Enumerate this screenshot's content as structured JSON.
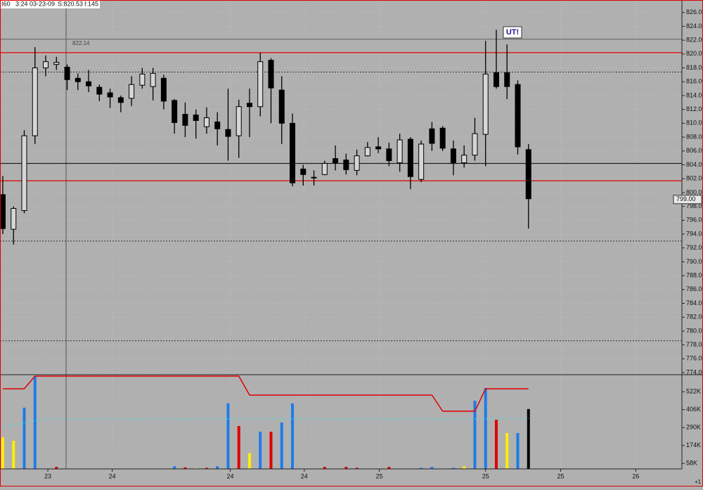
{
  "header": {
    "symbol": "I60",
    "time": "3:24",
    "date": "03-23-09",
    "last": "S:820.53",
    "interval": "I:145"
  },
  "chart_data": [
    {
      "type": "candlestick",
      "open": [
        799.7,
        794.7,
        797.4,
        808.2,
        818,
        818.5,
        818.1,
        816.5,
        816,
        815.2,
        814.4,
        813.7,
        813.6,
        815.5,
        815.3,
        816.5,
        813.3,
        811.3,
        811.2,
        809.5,
        810.2,
        809.1,
        808.2,
        812.9,
        812.4,
        819.1,
        814.8,
        810,
        803.4,
        802.2,
        802.6,
        804.9,
        804.7,
        803.2,
        805.3,
        806.6,
        806.3,
        804.3,
        807.7,
        801.9,
        809.2,
        809.3,
        806.3,
        804.3,
        805.4,
        808.4,
        817.3,
        817.3,
        815.6,
        806.2
      ],
      "high": [
        802.4,
        798,
        809,
        821,
        819.8,
        819.6,
        818.5,
        817.2,
        817.7,
        815.6,
        815,
        814,
        816.8,
        818,
        818,
        817,
        813.5,
        813,
        812,
        812.3,
        811.6,
        815,
        813.4,
        815,
        820.2,
        819.4,
        816.8,
        811.4,
        804,
        803.2,
        804.6,
        806.8,
        805.6,
        806.2,
        807.3,
        808,
        807.2,
        808.5,
        808,
        807.5,
        810.2,
        809.6,
        807.5,
        806.8,
        810.8,
        821.9,
        823.5,
        821.4,
        816.2,
        807
      ],
      "low": [
        794,
        792.5,
        797,
        807,
        816.8,
        817.7,
        814.8,
        814.8,
        814.5,
        813.2,
        812.2,
        811.6,
        812.5,
        815,
        813.3,
        812,
        808.5,
        808,
        807.8,
        808.5,
        806.8,
        804.6,
        805,
        808,
        811,
        810,
        807,
        800.9,
        801,
        801,
        802.5,
        803.2,
        802.6,
        802.5,
        805.2,
        805.7,
        803.8,
        803,
        800.5,
        801.5,
        806,
        806,
        802.5,
        803.6,
        804.6,
        803.8,
        815,
        813.5,
        805.5,
        794.8
      ],
      "close": [
        794.8,
        797.7,
        808.2,
        818,
        818.9,
        818.8,
        816.3,
        816,
        815.4,
        814.2,
        813.8,
        813,
        815.6,
        817.1,
        817.2,
        813.2,
        810.1,
        809.7,
        810.4,
        810.8,
        809.2,
        808.1,
        812.4,
        812.4,
        818.9,
        815.1,
        810,
        801.4,
        802.6,
        802.1,
        804.2,
        804.3,
        803.3,
        805.3,
        806.5,
        806.3,
        804.6,
        807.6,
        802.3,
        807,
        807.1,
        806.4,
        804.3,
        805.4,
        808.5,
        817.1,
        815.3,
        815.3,
        806.6,
        799.1
      ],
      "up_color": "#d6d6d6",
      "down_color": "#000000",
      "xlim": [
        -0.26,
        63.3
      ],
      "ylim": [
        773.8,
        827.8
      ],
      "xticks": [
        {
          "value": 4.2,
          "label": "23"
        },
        {
          "value": 10.2,
          "label": "24"
        },
        {
          "value": 21.2,
          "label": "24"
        },
        {
          "value": 28.1,
          "label": "24"
        },
        {
          "value": 35.1,
          "label": "25"
        },
        {
          "value": 45,
          "label": "25"
        },
        {
          "value": 52,
          "label": "25"
        },
        {
          "value": 59,
          "label": "26"
        }
      ],
      "yticks": [
        {
          "value": 826,
          "label": "826.00"
        },
        {
          "value": 824,
          "label": "824.00"
        },
        {
          "value": 822,
          "label": "822.00"
        },
        {
          "value": 820,
          "label": "820.00"
        },
        {
          "value": 818,
          "label": "818.00"
        },
        {
          "value": 816,
          "label": "816.00"
        },
        {
          "value": 814,
          "label": "814.00"
        },
        {
          "value": 812,
          "label": "812.00"
        },
        {
          "value": 810,
          "label": "810.00"
        },
        {
          "value": 808,
          "label": "808.00"
        },
        {
          "value": 806,
          "label": "806.00"
        },
        {
          "value": 804,
          "label": "804.00"
        },
        {
          "value": 802,
          "label": "802.00"
        },
        {
          "value": 800,
          "label": "800.00"
        },
        {
          "value": 798,
          "label": "798.00"
        },
        {
          "value": 796,
          "label": "796.00"
        },
        {
          "value": 794,
          "label": "794.00"
        },
        {
          "value": 792,
          "label": "792.00"
        },
        {
          "value": 790,
          "label": "790.00"
        },
        {
          "value": 788,
          "label": "788.00"
        },
        {
          "value": 786,
          "label": "786.00"
        },
        {
          "value": 784,
          "label": "784.00"
        },
        {
          "value": 782,
          "label": "782.00"
        },
        {
          "value": 780,
          "label": "780.00"
        },
        {
          "value": 778,
          "label": "778.00"
        },
        {
          "value": 776,
          "label": "776.00"
        },
        {
          "value": 774,
          "label": "774.00"
        }
      ],
      "grid": true,
      "levels": [
        {
          "value": 822.14,
          "label": "822.14",
          "color": "#6e6e6e",
          "dash": false
        },
        {
          "value": 820.2,
          "color": "#e00000",
          "dash": false
        },
        {
          "value": 817.4,
          "color": "#303030",
          "dash": true
        },
        {
          "value": 804.2,
          "color": "#202020",
          "dash": false
        },
        {
          "value": 801.7,
          "color": "#e00000",
          "dash": false
        },
        {
          "value": 793.0,
          "color": "#303030",
          "dash": true
        },
        {
          "value": 778.6,
          "color": "#303030",
          "dash": true
        }
      ],
      "last_price": {
        "value": 799,
        "label": "799.00"
      },
      "annotation": "UT!"
    },
    {
      "type": "bar",
      "values": [
        227000,
        205000,
        419000,
        623000,
        23000,
        36000,
        8000,
        9000,
        10000,
        8000,
        9000,
        10000,
        12000,
        10000,
        11000,
        25000,
        40000,
        33000,
        27000,
        30000,
        40000,
        447000,
        300000,
        125000,
        263000,
        263000,
        323000,
        446000,
        25000,
        20000,
        36000,
        15000,
        36000,
        30000,
        15000,
        13000,
        36000,
        15000,
        15000,
        30000,
        36000,
        23000,
        30000,
        40000,
        464000,
        546000,
        341000,
        255000,
        255000,
        410000
      ],
      "colors": [
        "#ffee00",
        "#ffee00",
        "#1e7ce8",
        "#1e7ce8",
        "#ffee00",
        "#e00000",
        "#1e7ce8",
        "#e00000",
        "#ffee00",
        "#1e7ce8",
        "#ffee00",
        "#1e7ce8",
        "#1e7ce8",
        "#ffee00",
        "#e00000",
        "#1e7ce8",
        "#1e7ce8",
        "#e00000",
        "#ffee00",
        "#e00000",
        "#1e7ce8",
        "#1e7ce8",
        "#e00000",
        "#ffee00",
        "#1e7ce8",
        "#e00000",
        "#1e7ce8",
        "#1e7ce8",
        "#ffee00",
        "#ffee00",
        "#e00000",
        "#ffee00",
        "#e00000",
        "#e00000",
        "#ffee00",
        "#ffee00",
        "#e00000",
        "#ffee00",
        "#1e7ce8",
        "#1e7ce8",
        "#1e7ce8",
        "#e00000",
        "#1e7ce8",
        "#ffee00",
        "#1e7ce8",
        "#1e7ce8",
        "#e00000",
        "#ffee00",
        "#1e7ce8",
        "#000000"
      ],
      "lines": [
        {
          "color": "#e00000",
          "dash": false,
          "values": [
            541000,
            541000,
            541000,
            623000,
            623000,
            623000,
            623000,
            623000,
            623000,
            623000,
            623000,
            623000,
            623000,
            623000,
            623000,
            623000,
            623000,
            623000,
            623000,
            623000,
            623000,
            623000,
            623000,
            500000,
            500000,
            500000,
            500000,
            500000,
            500000,
            500000,
            500000,
            500000,
            500000,
            500000,
            500000,
            500000,
            500000,
            500000,
            500000,
            500000,
            500000,
            396000,
            396000,
            396000,
            396000,
            541000,
            541000,
            541000,
            541000,
            541000
          ]
        },
        {
          "color": "#40e0e0",
          "dash": true,
          "values": [
            291000,
            305000,
            320000,
            335000,
            346000,
            346000,
            346000,
            346000,
            346000,
            346000,
            346000,
            346000,
            346000,
            346000,
            346000,
            346000,
            346000,
            346000,
            346000,
            346000,
            346000,
            346000,
            346000,
            346000,
            346000,
            346000,
            346000,
            346000,
            346000,
            346000,
            346000,
            346000,
            346000,
            346000,
            346000,
            346000,
            346000,
            346000,
            346000,
            346000,
            346000,
            346000,
            346000,
            346000,
            346000,
            346000,
            346000,
            346000,
            346000,
            350000
          ]
        }
      ],
      "xlim": [
        -0.26,
        63.3
      ],
      "ylim": [
        0,
        623000
      ],
      "yticks": [
        {
          "value": 522000,
          "label": "522K"
        },
        {
          "value": 406000,
          "label": "406K"
        },
        {
          "value": 290000,
          "label": "290K"
        },
        {
          "value": 174000,
          "label": "174K"
        },
        {
          "value": 58000,
          "label": "58K"
        }
      ],
      "axis_note": "+1"
    }
  ]
}
